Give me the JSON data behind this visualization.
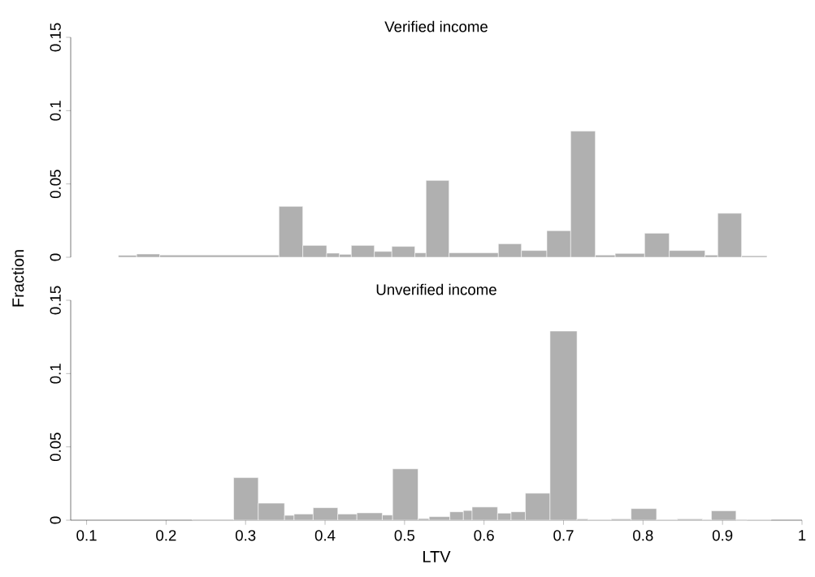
{
  "chart_data": [
    {
      "type": "histogram",
      "title": "Verified income",
      "color": "#b0b0b0",
      "xlim": [
        0.08,
        1.0
      ],
      "ylim": [
        0,
        0.15
      ],
      "yticks": [
        0,
        0.05,
        0.1,
        0.15
      ],
      "tick_labels": "y",
      "bins": [
        0.14,
        0.163,
        0.192,
        0.342,
        0.372,
        0.402,
        0.418,
        0.433,
        0.462,
        0.484,
        0.513,
        0.527,
        0.556,
        0.618,
        0.647,
        0.679,
        0.709,
        0.74,
        0.765,
        0.802,
        0.833,
        0.878,
        0.894,
        0.924,
        0.956
      ],
      "values": [
        0.0013,
        0.0022,
        0.0015,
        0.0347,
        0.0081,
        0.0028,
        0.002,
        0.0081,
        0.004,
        0.0074,
        0.003,
        0.0524,
        0.003,
        0.0092,
        0.0046,
        0.0181,
        0.086,
        0.0015,
        0.0026,
        0.0164,
        0.0046,
        0.0015,
        0.03,
        0.001
      ]
    },
    {
      "type": "histogram",
      "title": "Unverified income",
      "xlabel": "LTV",
      "ylabel": "Fraction",
      "color": "#b0b0b0",
      "xlim": [
        0.08,
        1.0
      ],
      "ylim": [
        0,
        0.15
      ],
      "yticks": [
        0,
        0.05,
        0.1,
        0.15
      ],
      "xticks": [
        0.1,
        0.2,
        0.3,
        0.4,
        0.5,
        0.6,
        0.7,
        0.8,
        0.9,
        1
      ],
      "bins": [
        0.233,
        0.285,
        0.316,
        0.349,
        0.361,
        0.385,
        0.416,
        0.44,
        0.472,
        0.485,
        0.517,
        0.531,
        0.557,
        0.574,
        0.585,
        0.617,
        0.634,
        0.652,
        0.683,
        0.717,
        0.731,
        0.76,
        0.785,
        0.817,
        0.843,
        0.875,
        0.886,
        0.917,
        0.931,
        0.961
      ],
      "values": [
        0.0006,
        0.029,
        0.0116,
        0.0033,
        0.0042,
        0.0085,
        0.0042,
        0.005,
        0.0035,
        0.035,
        0.0011,
        0.0024,
        0.0057,
        0.0066,
        0.009,
        0.0048,
        0.0057,
        0.0184,
        0.129,
        0.0009,
        0.0004,
        0.0009,
        0.0079,
        0.0004,
        0.0009,
        0.0004,
        0.0064,
        0,
        0.0004
      ]
    }
  ]
}
